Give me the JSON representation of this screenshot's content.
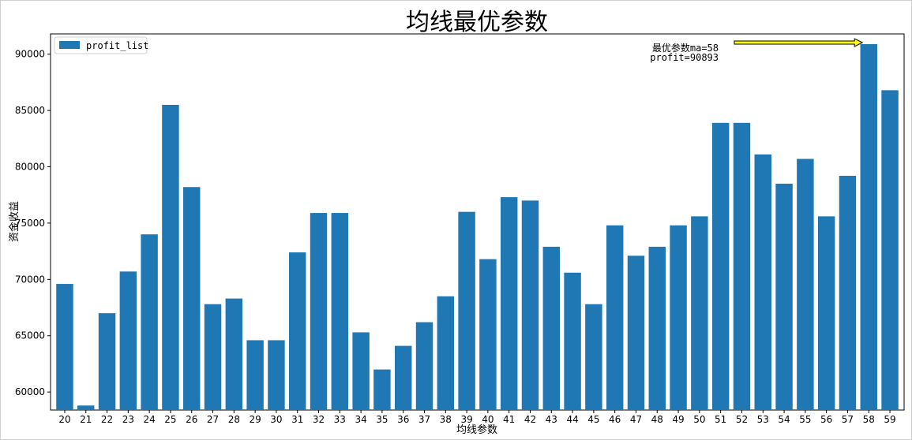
{
  "chart_data": {
    "type": "bar",
    "title": "均线最优参数",
    "xlabel": "均线参数",
    "ylabel": "资金收益",
    "categories": [
      "20",
      "21",
      "22",
      "23",
      "24",
      "25",
      "26",
      "27",
      "28",
      "29",
      "30",
      "31",
      "32",
      "33",
      "34",
      "35",
      "36",
      "37",
      "38",
      "39",
      "40",
      "41",
      "42",
      "43",
      "44",
      "45",
      "46",
      "47",
      "48",
      "49",
      "50",
      "51",
      "52",
      "53",
      "54",
      "55",
      "56",
      "57",
      "58",
      "59"
    ],
    "series": [
      {
        "name": "profit_list",
        "color": "#1f77b4",
        "values": [
          69600,
          58800,
          67000,
          70700,
          74000,
          85500,
          78200,
          67800,
          68300,
          64600,
          64600,
          72400,
          75900,
          75900,
          65300,
          62000,
          64100,
          66200,
          68500,
          76000,
          71800,
          77300,
          77000,
          72900,
          70600,
          67800,
          74800,
          72100,
          72900,
          74800,
          75600,
          83900,
          83900,
          81100,
          78500,
          80700,
          75600,
          79200,
          90893,
          86800
        ]
      }
    ],
    "ylim": [
      58400,
      91800
    ],
    "yticks": [
      60000,
      65000,
      70000,
      75000,
      80000,
      85000,
      90000
    ],
    "grid": false,
    "legend": "top-left",
    "annotation": {
      "line1": "最优参数ma=58",
      "line2": "profit=90893",
      "arrow_color": "#ffff00"
    }
  }
}
